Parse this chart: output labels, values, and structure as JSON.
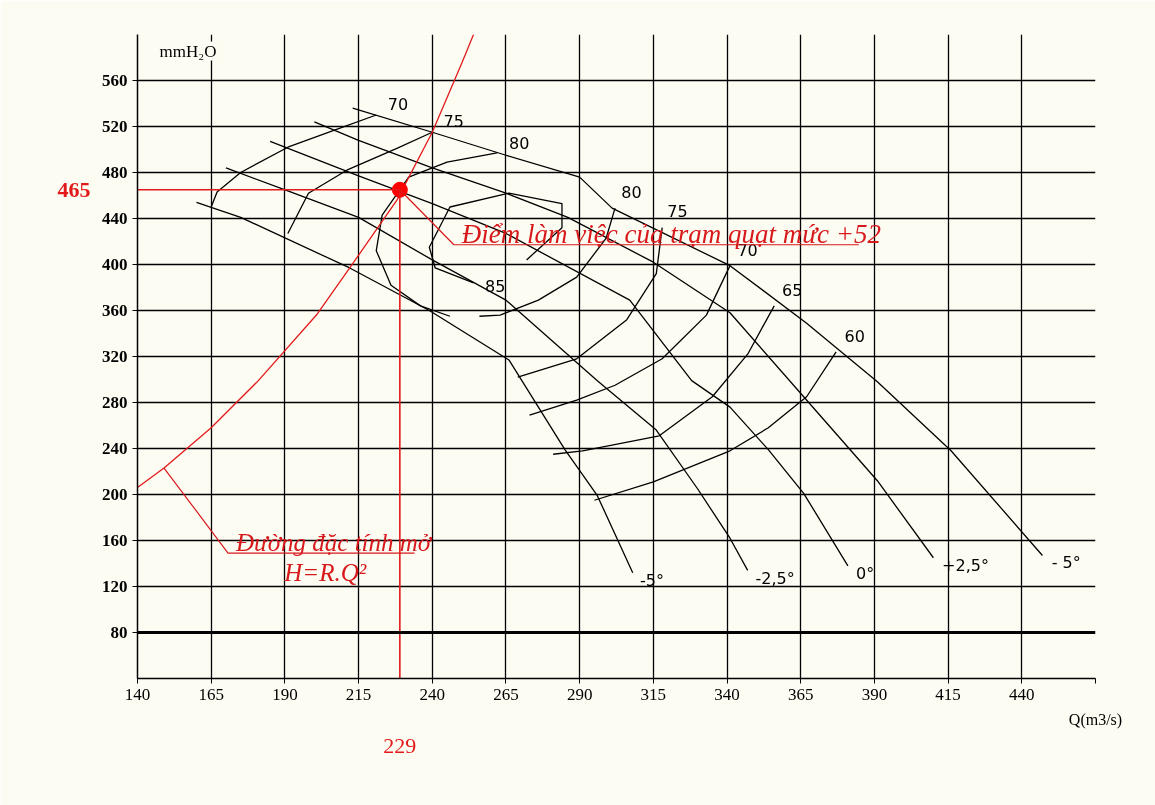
{
  "chart_data": {
    "type": "line",
    "xlabel": "Q(m3/s)",
    "ylabel": "mmH₂O",
    "xlim": [
      140,
      465
    ],
    "ylim": [
      40,
      600
    ],
    "xticks": [
      140,
      165,
      190,
      215,
      240,
      265,
      290,
      315,
      340,
      365,
      390,
      415,
      440,
      {
        "value": 465,
        "label": null
      }
    ],
    "yticks": [
      80,
      120,
      160,
      200,
      240,
      280,
      320,
      360,
      400,
      440,
      480,
      520,
      560
    ],
    "grid": true,
    "series": [
      {
        "name": "-5°",
        "color": "#000000",
        "x": [
          160,
          175,
          212,
          239,
          266,
          285,
          296,
          308
        ],
        "values": [
          454,
          441,
          397,
          360,
          317,
          239,
          199,
          132
        ]
      },
      {
        "name": "-2,5°",
        "color": "#000000",
        "x": [
          170,
          191,
          215,
          240,
          265,
          296,
          316,
          330,
          341,
          347
        ],
        "values": [
          484,
          464,
          441,
          404,
          369,
          299,
          256,
          205,
          162,
          134
        ]
      },
      {
        "name": "0°",
        "color": "#000000",
        "x": [
          185,
          215,
          240,
          265,
          307,
          328,
          341,
          354,
          366,
          381
        ],
        "values": [
          507,
          477,
          453,
          427,
          369,
          299,
          276,
          239,
          201,
          138
        ]
      },
      {
        "name": "+2,5°",
        "color": "#000000",
        "x": [
          200,
          215,
          240,
          265,
          286,
          315,
          341,
          366,
          391,
          410
        ],
        "values": [
          524,
          508,
          484,
          462,
          441,
          402,
          358,
          285,
          212,
          145
        ]
      },
      {
        "name": "- 5°",
        "color": "#000000",
        "x": [
          213,
          240,
          265,
          290,
          301,
          341,
          367,
          391,
          416,
          447
        ],
        "values": [
          536,
          515,
          495,
          476,
          449,
          399,
          349,
          298,
          238,
          147
        ]
      },
      {
        "name": "70",
        "color": "#000000",
        "x": [
          165,
          167,
          175,
          191,
          208,
          221
        ],
        "values": [
          450,
          463,
          480,
          502,
          518,
          530
        ]
      },
      {
        "name": "75",
        "color": "#000000",
        "x": [
          191,
          198,
          211,
          228,
          240
        ],
        "values": [
          427,
          462,
          482,
          501,
          515
        ]
      },
      {
        "name": "80",
        "color": "#000000",
        "x": [
          246,
          236,
          226,
          221,
          223,
          232,
          245,
          262
        ],
        "values": [
          355,
          364,
          382,
          412,
          443,
          476,
          489,
          497
        ]
      },
      {
        "name": "80",
        "color": "#000000",
        "x": [
          256,
          263,
          276,
          289,
          299,
          302
        ],
        "values": [
          355,
          356,
          369,
          389,
          423,
          449
        ]
      },
      {
        "name": "75",
        "color": "#000000",
        "x": [
          269,
          289,
          306,
          316,
          318
        ],
        "values": [
          302,
          318,
          352,
          392,
          432
        ]
      },
      {
        "name": "70",
        "color": "#000000",
        "x": [
          273,
          289,
          302,
          318,
          333,
          341
        ],
        "values": [
          269,
          282,
          295,
          318,
          356,
          399
        ]
      },
      {
        "name": "65",
        "color": "#000000",
        "x": [
          281,
          291,
          317,
          335,
          347,
          356
        ],
        "values": [
          235,
          238,
          251,
          285,
          322,
          364
        ]
      },
      {
        "name": "60",
        "color": "#000000",
        "x": [
          295,
          315,
          341,
          354,
          367,
          377
        ],
        "values": [
          195,
          211,
          238,
          258,
          285,
          324
        ]
      },
      {
        "name": "85",
        "color": "#000000",
        "x": [
          272,
          284,
          284,
          266,
          246,
          239,
          241,
          254
        ],
        "values": [
          404,
          432,
          453,
          462,
          450,
          415,
          397,
          384
        ]
      },
      {
        "color": "#e31a1c",
        "x": [
          140,
          149,
          165,
          181,
          201,
          212,
          228,
          240,
          250,
          254
        ],
        "values": [
          206,
          223,
          258,
          299,
          357,
          397,
          456,
          515,
          575,
          600
        ]
      },
      {
        "type": "scatter",
        "marker": "circle",
        "color": "#ff0000",
        "x": [
          229
        ],
        "values": [
          465
        ]
      }
    ],
    "ref_lines": [
      {
        "axis": "x",
        "value": 229,
        "label": "229",
        "color": "#e31a1c"
      },
      {
        "axis": "y",
        "value": 465,
        "label": "465",
        "color": "#e31a1c"
      },
      {
        "axis": "y",
        "value": 80,
        "color": "#000000"
      }
    ],
    "annotations": [
      {
        "text": "Điểm làm việc của trạm quạt mức +52",
        "x": 229,
        "y": 465
      },
      {
        "text": "Đường đặc tính mở\nH=R.Q²",
        "x": 149,
        "y": 223
      }
    ]
  }
}
